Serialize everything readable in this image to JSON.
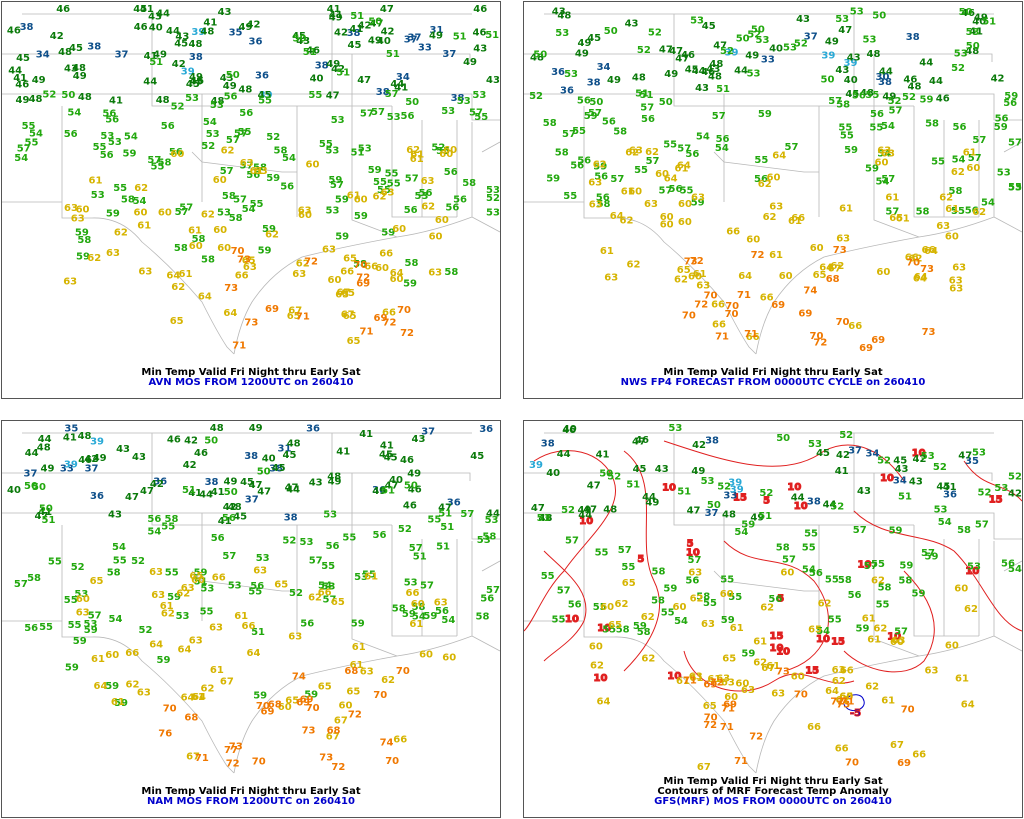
{
  "colors": {
    "cold_blue": "#0e4f8a",
    "cyan": "#29a9d6",
    "dark_green": "#0a7a0a",
    "green": "#22a80e",
    "yellow": "#d6b400",
    "orange": "#f07800",
    "anomaly_red": "#e02020",
    "anomaly_blue": "#0000cc",
    "border_grey": "#b8b8b8"
  },
  "panels": [
    {
      "line1": "Min Temp Valid Fri Night thru Early Sat",
      "line2": "AVN MOS FROM 1200UTC on 260410",
      "line3": "",
      "values": [
        "45",
        "33",
        "37",
        "41",
        "39",
        "42",
        "44",
        "46",
        "45",
        "47",
        "44",
        "44",
        "41",
        "40",
        "38",
        "38",
        "38",
        "40",
        "41",
        "41",
        "42",
        "42",
        "43",
        "41",
        "31",
        "39",
        "42",
        "44",
        "38",
        "49",
        "51",
        "46",
        "43",
        "40",
        "48",
        "43",
        "45",
        "42",
        "41",
        "35",
        "53",
        "41",
        "41",
        "42",
        "49",
        "58",
        "49",
        "57",
        "54",
        "55",
        "46",
        "48",
        "56",
        "53",
        "45",
        "43",
        "48",
        "38",
        "34",
        "36",
        "45",
        "48",
        "50",
        "56",
        "53",
        "54",
        "55",
        "43",
        "55",
        "51",
        "49",
        "48",
        "46",
        "56",
        "44",
        "39",
        "34",
        "38",
        "45",
        "46",
        "45",
        "46",
        "42",
        "51",
        "52",
        "52",
        "53",
        "56",
        "51",
        "47",
        "49",
        "50",
        "52",
        "37",
        "56",
        "48",
        "53",
        "54",
        "52",
        "55",
        "51",
        "48",
        "56",
        "55",
        "53",
        "49",
        "50",
        "48",
        "55",
        "57",
        "53",
        "37",
        "47",
        "36",
        "41",
        "46",
        "43",
        "49",
        "55",
        "53",
        "47",
        "58",
        "55",
        "51",
        "57",
        "55",
        "49",
        "37",
        "38",
        "43",
        "57",
        "53",
        "56",
        "48",
        "53",
        "56",
        "57",
        "52",
        "60",
        "58",
        "60",
        "58",
        "58",
        "55",
        "58",
        "59",
        "61",
        "53",
        "60",
        "54",
        "43",
        "53",
        "49",
        "58",
        "57",
        "55",
        "59",
        "62",
        "60",
        "56",
        "62",
        "58",
        "56",
        "53",
        "57",
        "53",
        "45",
        "49",
        "51",
        "46",
        "55",
        "54",
        "57",
        "61",
        "58",
        "63",
        "65",
        "56",
        "63",
        "60",
        "59",
        "59",
        "61",
        "57",
        "56",
        "49",
        "49",
        "53",
        "54",
        "55",
        "56",
        "57",
        "59",
        "59",
        "60",
        "60",
        "62",
        "62",
        "65",
        "66",
        "63",
        "59",
        "55",
        "57",
        "58",
        "61",
        "58",
        "53",
        "50",
        "53",
        "56",
        "62",
        "63",
        "63",
        "59",
        "64",
        "62",
        "60",
        "60",
        "62",
        "62",
        "59",
        "60",
        "55",
        "57",
        "60",
        "52",
        "57",
        "50",
        "53",
        "45",
        "54",
        "63",
        "64",
        "62",
        "65",
        "61",
        "60",
        "62",
        "58",
        "59",
        "60",
        "60",
        "58",
        "51",
        "56",
        "55",
        "57",
        "67",
        "54",
        "58",
        "59",
        "59",
        "62",
        "65",
        "63",
        "60",
        "61",
        "63",
        "60",
        "59",
        "60",
        "57",
        "56",
        "61",
        "64",
        "67",
        "63",
        "65",
        "64",
        "65",
        "63",
        "65",
        "63",
        "67",
        "66",
        "59",
        "60",
        "60",
        "63",
        "66",
        "61",
        "63",
        "65",
        "66",
        "69",
        "63",
        "69",
        "66",
        "70",
        "70",
        "71",
        "73",
        "70",
        "72",
        "72",
        "71",
        "72",
        "73",
        "69",
        "71",
        "73",
        "72"
      ]
    },
    {
      "line1": "Min Temp Valid Fri Night thru Early Sat",
      "line2": "NWS FP4 FORECAST FROM 0000UTC CYCLE on 260410",
      "line3": "",
      "values": [
        "48",
        "33",
        "34",
        "44",
        "43",
        "44",
        "46",
        "48",
        "49",
        "47",
        "50",
        "46",
        "49",
        "47",
        "38",
        "39",
        "40",
        "44",
        "43",
        "42",
        "40",
        "48",
        "41",
        "47",
        "43",
        "37",
        "43",
        "45",
        "36",
        "38",
        "53",
        "50",
        "44",
        "46",
        "45",
        "43",
        "49",
        "50",
        "52",
        "50",
        "53",
        "49",
        "48",
        "52",
        "54",
        "50",
        "48",
        "51",
        "57",
        "54",
        "46",
        "49",
        "45",
        "56",
        "48",
        "50",
        "56",
        "38",
        "30",
        "36",
        "39",
        "43",
        "47",
        "52",
        "56",
        "52",
        "53",
        "57",
        "56",
        "50",
        "53",
        "55",
        "56",
        "51",
        "53",
        "52",
        "48",
        "48",
        "55",
        "54",
        "52",
        "56",
        "55",
        "49",
        "46",
        "43",
        "45",
        "39",
        "40",
        "44",
        "49",
        "51",
        "48",
        "57",
        "56",
        "54",
        "57",
        "53",
        "56",
        "57",
        "53",
        "55",
        "52",
        "51",
        "53",
        "55",
        "57",
        "52",
        "50",
        "54",
        "56",
        "57",
        "53",
        "58",
        "50",
        "55",
        "49",
        "50",
        "56",
        "52",
        "58",
        "54",
        "56",
        "57",
        "55",
        "53",
        "56",
        "57",
        "55",
        "59",
        "60",
        "56",
        "58",
        "59",
        "61",
        "61",
        "62",
        "61",
        "59",
        "60",
        "62",
        "59",
        "60",
        "63",
        "53",
        "54",
        "62",
        "55",
        "60",
        "61",
        "57",
        "58",
        "60",
        "59",
        "62",
        "56",
        "55",
        "63",
        "64",
        "59",
        "60",
        "57",
        "62",
        "58",
        "63",
        "61",
        "62",
        "66",
        "62",
        "63",
        "62",
        "53",
        "56",
        "58",
        "57",
        "55",
        "53",
        "58",
        "55",
        "57",
        "63",
        "60",
        "61",
        "62",
        "64",
        "61",
        "66",
        "66",
        "63",
        "65",
        "63",
        "64",
        "60",
        "63",
        "61",
        "59",
        "62",
        "56",
        "47",
        "60",
        "62",
        "63",
        "59",
        "63",
        "60",
        "64",
        "60",
        "62",
        "61",
        "60",
        "61",
        "58",
        "56",
        "59",
        "61",
        "65",
        "66",
        "64",
        "65",
        "66",
        "60",
        "57",
        "59",
        "64",
        "57",
        "55",
        "60",
        "64",
        "62",
        "63",
        "63",
        "66",
        "60",
        "57",
        "63",
        "66",
        "63",
        "64",
        "70",
        "68",
        "70",
        "70",
        "67",
        "69",
        "70",
        "71",
        "72",
        "69",
        "66",
        "71",
        "69",
        "69",
        "73",
        "70",
        "72",
        "74",
        "72",
        "73",
        "73",
        "72",
        "71",
        "70",
        "70",
        "73",
        "66",
        "64",
        "63"
      ]
    },
    {
      "line1": "Min Temp Valid Fri Night thru Early Sat",
      "line2": "NAM MOS FROM 1200UTC on 260410",
      "line3": "",
      "values": [
        "45",
        "33",
        "36",
        "38",
        "41",
        "44",
        "42",
        "46",
        "46",
        "45",
        "43",
        "42",
        "41",
        "38",
        "37",
        "38",
        "39",
        "42",
        "44",
        "48",
        "41",
        "36",
        "37",
        "40",
        "43",
        "41",
        "45",
        "45",
        "48",
        "47",
        "40",
        "38",
        "37",
        "31",
        "46",
        "53",
        "54",
        "44",
        "45",
        "43",
        "51",
        "49",
        "48",
        "56",
        "55",
        "53",
        "51",
        "50",
        "53",
        "54",
        "52",
        "50",
        "53",
        "55",
        "50",
        "51",
        "48",
        "47",
        "53",
        "51",
        "47",
        "42",
        "36",
        "35",
        "44",
        "43",
        "49",
        "46",
        "52",
        "47",
        "50",
        "36",
        "49",
        "55",
        "51",
        "54",
        "53",
        "50",
        "44",
        "48",
        "52",
        "51",
        "41",
        "39",
        "41",
        "49",
        "45",
        "46",
        "36",
        "36",
        "37",
        "40",
        "41",
        "47",
        "43",
        "42",
        "47",
        "49",
        "53",
        "51",
        "56",
        "57",
        "55",
        "53",
        "55",
        "58",
        "55",
        "50",
        "51",
        "57",
        "53",
        "56",
        "54",
        "53",
        "49",
        "41",
        "50",
        "47",
        "46",
        "56",
        "56",
        "57",
        "59",
        "56",
        "60",
        "59",
        "58",
        "59",
        "58",
        "61",
        "59",
        "57",
        "60",
        "59",
        "59",
        "60",
        "58",
        "55",
        "55",
        "57",
        "51",
        "52",
        "54",
        "48",
        "53",
        "55",
        "56",
        "58",
        "60",
        "58",
        "57",
        "62",
        "59",
        "60",
        "59",
        "61",
        "63",
        "64",
        "63",
        "64",
        "60",
        "61",
        "62",
        "62",
        "57",
        "55",
        "54",
        "56",
        "61",
        "59",
        "60",
        "61",
        "59",
        "64",
        "65",
        "63",
        "66",
        "66",
        "63",
        "63",
        "64",
        "61",
        "60",
        "59",
        "53",
        "53",
        "55",
        "56",
        "52",
        "49",
        "55",
        "63",
        "61",
        "62",
        "63",
        "65",
        "65",
        "66",
        "67",
        "67",
        "63",
        "64",
        "63",
        "59",
        "58",
        "56",
        "59",
        "55",
        "57",
        "52",
        "45",
        "47",
        "61",
        "57",
        "63",
        "61",
        "62",
        "64",
        "66",
        "65",
        "65",
        "69",
        "70",
        "70",
        "68",
        "68",
        "67",
        "65",
        "66",
        "63",
        "70",
        "70",
        "73",
        "71",
        "72",
        "70",
        "74",
        "73",
        "72",
        "69",
        "68",
        "69",
        "70",
        "73",
        "74",
        "76",
        "77",
        "70",
        "72",
        "66",
        "67",
        "68",
        "65",
        "61",
        "62"
      ]
    },
    {
      "line1": "Min Temp Valid Fri Night thru Early Sat",
      "line2": "Contours of MRF Forecast Temp Anomaly",
      "line3": "GFS(MRF) MOS FROM 0000UTC on 260410",
      "values": [
        "37",
        "34",
        "41",
        "42",
        "44",
        "47",
        "49",
        "47",
        "47",
        "46",
        "45",
        "39",
        "38",
        "39",
        "40",
        "42",
        "41",
        "41",
        "35",
        "38",
        "33",
        "43",
        "44",
        "45",
        "42",
        "43",
        "44",
        "47",
        "48",
        "49",
        "45",
        "46",
        "43",
        "39",
        "38",
        "34",
        "51",
        "50",
        "52",
        "53",
        "55",
        "56",
        "54",
        "48",
        "49",
        "47",
        "55",
        "53",
        "55",
        "59",
        "57",
        "48",
        "53",
        "44",
        "36",
        "37",
        "43",
        "45",
        "42",
        "44",
        "40",
        "51",
        "52",
        "47",
        "55",
        "53",
        "57",
        "55",
        "56",
        "55",
        "54",
        "58",
        "52",
        "55",
        "57",
        "53",
        "50",
        "51",
        "49",
        "55",
        "54",
        "53",
        "58",
        "56",
        "60",
        "59",
        "54",
        "57",
        "52",
        "55",
        "53",
        "57",
        "55",
        "58",
        "60",
        "59",
        "62",
        "61",
        "60",
        "58",
        "60",
        "52",
        "55",
        "59",
        "58",
        "60",
        "61",
        "62",
        "63",
        "62",
        "56",
        "53",
        "52",
        "52",
        "55",
        "52",
        "55",
        "58",
        "56",
        "55",
        "54",
        "59",
        "60",
        "61",
        "59",
        "63",
        "61",
        "57",
        "58",
        "62",
        "59",
        "61",
        "63",
        "62",
        "62",
        "64",
        "61",
        "60",
        "58",
        "57",
        "63",
        "62",
        "59",
        "59",
        "60",
        "58",
        "57",
        "61",
        "62",
        "59",
        "58",
        "63",
        "62",
        "60",
        "62",
        "66",
        "65",
        "67",
        "63",
        "65",
        "66",
        "63",
        "64",
        "66",
        "63",
        "60",
        "56",
        "54",
        "52",
        "55",
        "53",
        "51",
        "50",
        "52",
        "55",
        "62",
        "61",
        "60",
        "62",
        "63",
        "65",
        "64",
        "60",
        "63",
        "61",
        "62",
        "65",
        "61",
        "62",
        "57",
        "57",
        "67",
        "67",
        "65",
        "66",
        "69",
        "70",
        "71",
        "70",
        "73",
        "72",
        "71",
        "71",
        "72",
        "70",
        "71",
        "72",
        "73",
        "72",
        "69",
        "71",
        "70",
        "69",
        "65"
      ],
      "anomaly_labels": [
        "10",
        "10",
        "10",
        "15",
        "15",
        "10",
        "15",
        "10",
        "10",
        "10",
        "10",
        "10",
        "10",
        "15",
        "10",
        "15",
        "10",
        "10",
        "10",
        "10",
        "5",
        "5",
        "10",
        "10",
        "5",
        "5",
        "-5"
      ]
    }
  ]
}
